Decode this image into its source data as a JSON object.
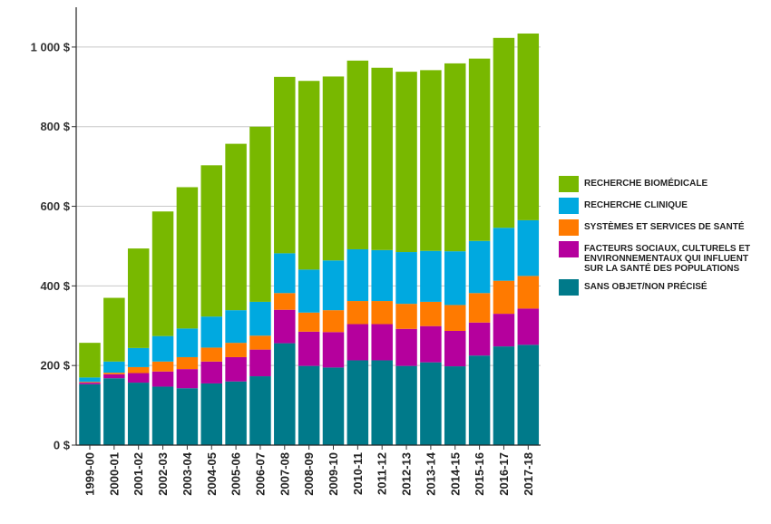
{
  "chart_data": {
    "type": "bar",
    "stacked": true,
    "categories": [
      "1999-00",
      "2000-01",
      "2001-02",
      "2002-03",
      "2003-04",
      "2004-05",
      "2005-06",
      "2006-07",
      "2007-08",
      "2008-09",
      "2009-10",
      "2010-11",
      "2011-12",
      "2012-13",
      "2013-14",
      "2014-15",
      "2015-16",
      "2016-17",
      "2017-18"
    ],
    "series": [
      {
        "name": "SANS OBJET/NON PRÉCISÉ",
        "color": "#007A8A",
        "values": [
          153,
          168,
          157,
          147,
          143,
          155,
          160,
          173,
          256,
          199,
          195,
          213,
          213,
          199,
          208,
          198,
          225,
          248,
          252
        ]
      },
      {
        "name": "FACTEURS SOCIAUX, CULTURELS ET\nENVIRONNEMENTAUX QUI INFLUENT\nSUR LA SANTÉ DES POPULATIONS",
        "color": "#B5009D",
        "values": [
          4,
          10,
          24,
          38,
          48,
          55,
          61,
          67,
          84,
          86,
          89,
          91,
          91,
          93,
          91,
          89,
          83,
          82,
          91
        ]
      },
      {
        "name": "SYSTÈMES ET SERVICES DE SANTÉ",
        "color": "#FF7A00",
        "values": [
          2,
          4,
          15,
          25,
          30,
          35,
          36,
          35,
          42,
          48,
          55,
          58,
          58,
          63,
          61,
          65,
          74,
          83,
          82
        ]
      },
      {
        "name": "RECHERCHE CLINIQUE",
        "color": "#00A9E0",
        "values": [
          11,
          28,
          48,
          64,
          72,
          78,
          82,
          85,
          100,
          108,
          125,
          130,
          128,
          130,
          128,
          135,
          131,
          133,
          140
        ]
      },
      {
        "name": "RECHERCHE BIOMÉDICALE",
        "color": "#78B800",
        "values": [
          87,
          160,
          250,
          313,
          355,
          380,
          418,
          440,
          443,
          474,
          462,
          474,
          458,
          453,
          454,
          472,
          458,
          477,
          469
        ]
      }
    ],
    "legend_order": [
      "RECHERCHE BIOMÉDICALE",
      "RECHERCHE CLINIQUE",
      "SYSTÈMES ET SERVICES DE SANTÉ",
      "FACTEURS SOCIAUX, CULTURELS ET\nENVIRONNEMENTAUX QUI INFLUENT\nSUR LA SANTÉ DES POPULATIONS",
      "SANS OBJET/NON PRÉCISÉ"
    ],
    "legend_position": "right",
    "ylim": [
      0,
      1100
    ],
    "y_ticks": [
      0,
      200,
      400,
      600,
      800,
      1000
    ],
    "y_tick_labels": [
      "0 $",
      "200 $",
      "400 $",
      "600 $",
      "800 $",
      "1 000 $"
    ],
    "grid": true,
    "title": "",
    "xlabel": "",
    "ylabel": ""
  }
}
